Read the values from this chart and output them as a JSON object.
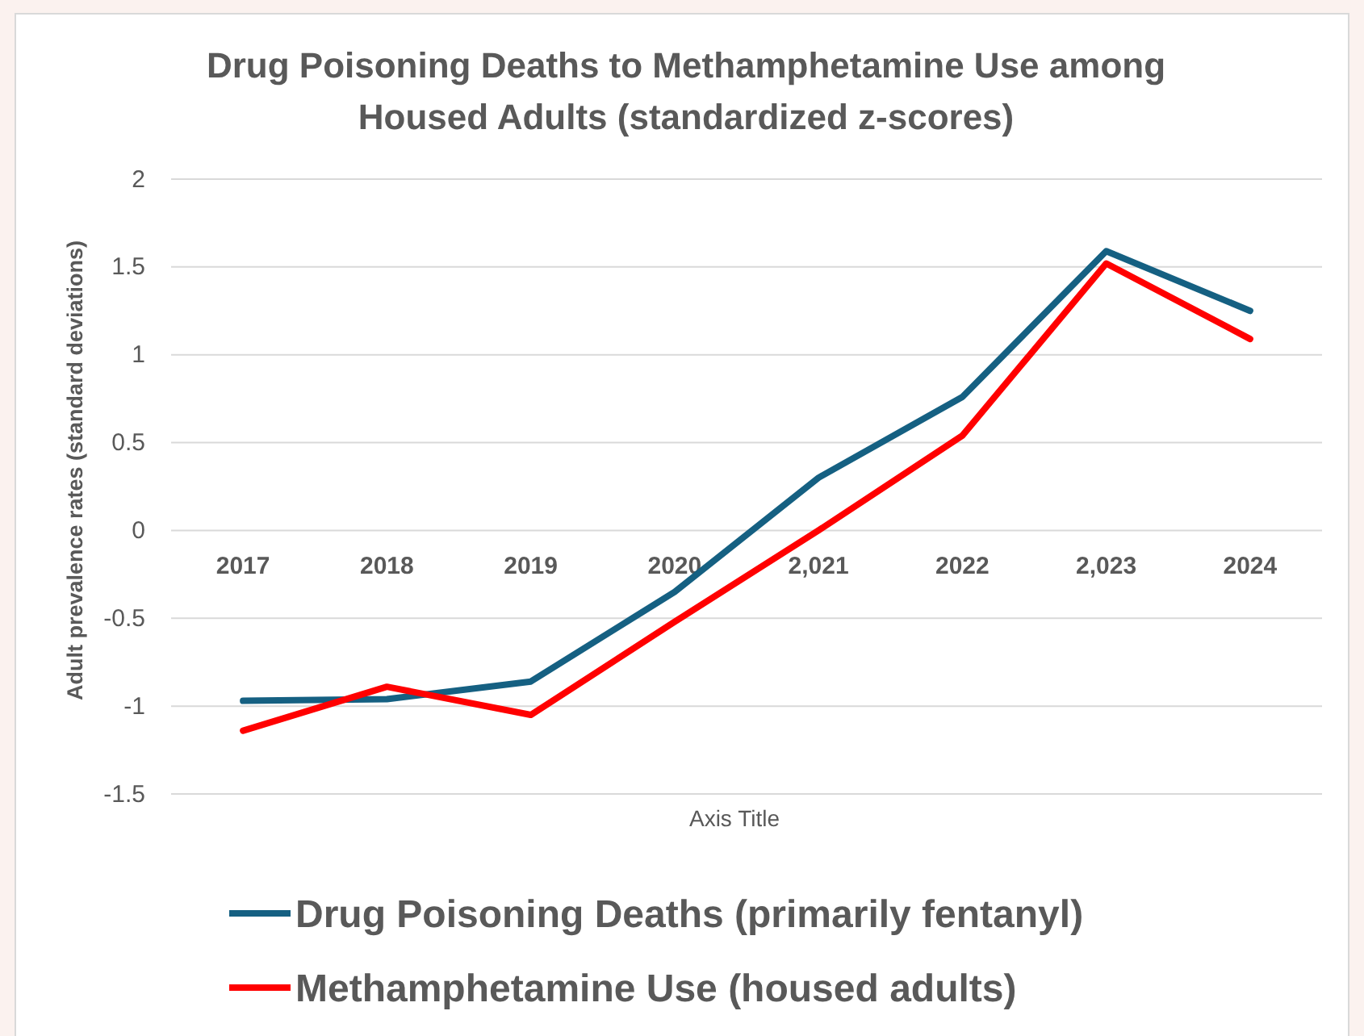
{
  "chart_data": {
    "type": "line",
    "title": "Drug Poisoning Deaths to Methamphetamine Use among Housed Adults (standardized z-scores)",
    "xlabel": "Axis Title",
    "ylabel": "Adult prevalence rates (standard deviations)",
    "categories": [
      "2017",
      "2018",
      "2019",
      "2020",
      "2,021",
      "2022",
      "2,023",
      "2024"
    ],
    "series": [
      {
        "name": "Drug Poisoning Deaths (primarily fentanyl)",
        "color": "#156082",
        "values": [
          -0.97,
          -0.96,
          -0.86,
          -0.35,
          0.3,
          0.76,
          1.59,
          1.25
        ]
      },
      {
        "name": "Methamphetamine Use (housed adults)",
        "color": "#ff0000",
        "values": [
          -1.14,
          -0.89,
          -1.05,
          -0.52,
          0.0,
          0.54,
          1.52,
          1.09
        ]
      }
    ],
    "ylim": [
      -1.5,
      2
    ],
    "yticks": [
      -1.5,
      -1,
      -0.5,
      0,
      0.5,
      1,
      1.5,
      2
    ],
    "grid": "y",
    "legend": "bottom",
    "marker": "none",
    "line_style": "solid"
  }
}
